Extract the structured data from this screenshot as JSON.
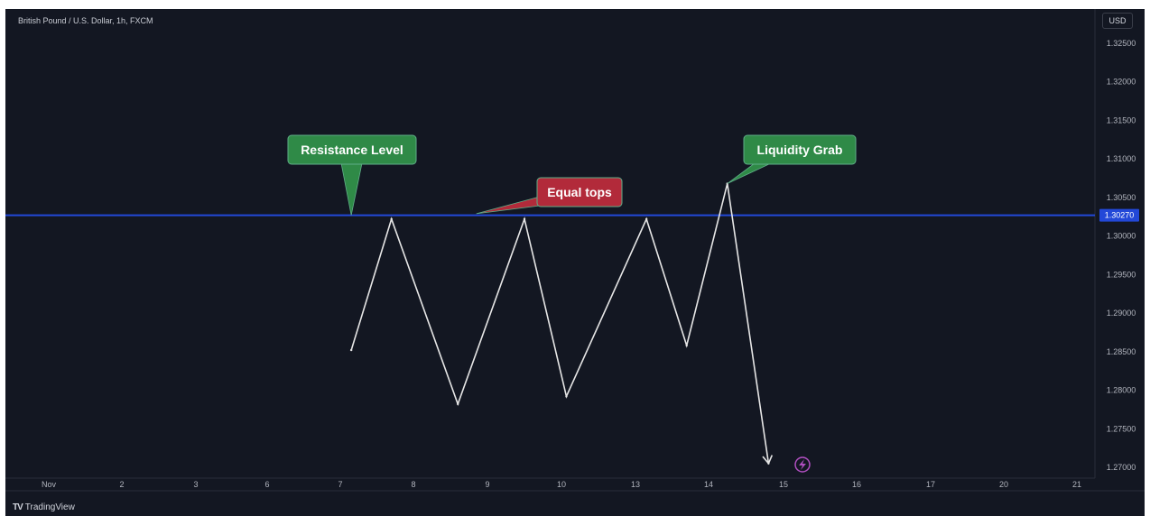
{
  "header": {
    "symbol_title": "British Pound / U.S. Dollar, 1h, FXCM",
    "currency_label": "USD"
  },
  "footer": {
    "logo_mark": "TV",
    "brand": "TradingView"
  },
  "colors": {
    "background": "#131722",
    "line": "#e6e6e6",
    "resistance": "#2348d8",
    "label_green": "#2f8a47",
    "label_red": "#b22a3a",
    "price_badge": "#2348d8",
    "lightning": "#b04fc0"
  },
  "chart_data": {
    "type": "line",
    "title": "British Pound / U.S. Dollar, 1h, FXCM",
    "x_tick_labels": [
      "Nov",
      "2",
      "3",
      "6",
      "7",
      "8",
      "9",
      "10",
      "13",
      "14",
      "15",
      "16",
      "17",
      "20",
      "21"
    ],
    "y_tick_labels": [
      "1.32500",
      "1.32000",
      "1.31500",
      "1.31000",
      "1.30500",
      "1.30000",
      "1.29500",
      "1.29000",
      "1.28500",
      "1.28000",
      "1.27500",
      "1.27000"
    ],
    "ylim": [
      1.268,
      1.328
    ],
    "grid": false,
    "series": [
      {
        "x": [
          7.15,
          7.7,
          8.6,
          9.5,
          10.2,
          13.15,
          13.7,
          14.25,
          14.8
        ],
        "y": [
          1.2852,
          1.3022,
          1.2782,
          1.3022,
          1.2792,
          1.3022,
          1.2858,
          1.3068,
          1.2705
        ],
        "ends_with_arrow": true
      }
    ],
    "resistance_level": {
      "value": 1.3027,
      "label": "1.30270"
    },
    "annotations": [
      {
        "text": "Resistance Level",
        "style": "green",
        "pointer_x": 7.15,
        "pointer_y": 1.3027
      },
      {
        "text": "Equal tops",
        "style": "red",
        "pointer_x": 8.85,
        "pointer_y": 1.3029
      },
      {
        "text": "Liquidity Grab",
        "style": "green",
        "pointer_x": 14.25,
        "pointer_y": 1.3068
      }
    ]
  }
}
